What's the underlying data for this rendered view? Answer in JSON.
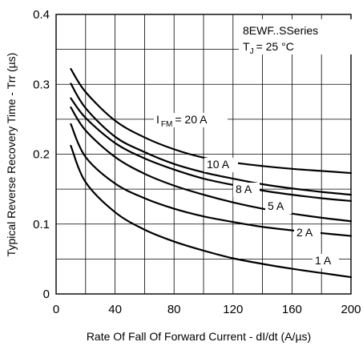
{
  "chart_data": {
    "type": "line",
    "xlabel": "Rate Of Fall Of Forward Current - dI/dt (A/µs)",
    "ylabel": "Typical Reverse Recovery Time - Trr (µs)",
    "xlim": [
      0,
      200
    ],
    "ylim": [
      0,
      0.4
    ],
    "x_ticks": [
      0,
      40,
      80,
      120,
      160,
      200
    ],
    "y_ticks": [
      0,
      0.1,
      0.2,
      0.3,
      0.4
    ],
    "x_tick_labels": [
      "0",
      "40",
      "80",
      "120",
      "160",
      "200"
    ],
    "y_tick_labels": [
      "0",
      "0.1",
      "0.2",
      "0.3",
      "0.4"
    ],
    "x_minor_step": 20,
    "y_minor_step": 0.05,
    "grid": true,
    "series_name": "8EWF..SSeries",
    "junction_temp_prefix": "T",
    "junction_temp_sub": "J",
    "junction_temp_value": "= 25 °C",
    "series": [
      {
        "name": "I_FM = 20 A",
        "label_prefix": "I",
        "label_sub": "FM",
        "label_suffix": "= 20 A",
        "x": [
          10,
          20,
          40,
          60,
          80,
          100,
          120,
          140,
          160,
          180,
          200
        ],
        "y": [
          0.322,
          0.289,
          0.248,
          0.224,
          0.207,
          0.195,
          0.188,
          0.183,
          0.179,
          0.176,
          0.173
        ]
      },
      {
        "name": "10 A",
        "label_prefix": "10 A",
        "x": [
          10,
          20,
          40,
          60,
          80,
          100,
          120,
          140,
          160,
          180,
          200
        ],
        "y": [
          0.301,
          0.266,
          0.225,
          0.203,
          0.186,
          0.174,
          0.165,
          0.157,
          0.151,
          0.146,
          0.142
        ]
      },
      {
        "name": "8 A",
        "label_prefix": "8 A",
        "x": [
          10,
          20,
          40,
          60,
          80,
          100,
          120,
          140,
          160,
          180,
          200
        ],
        "y": [
          0.28,
          0.252,
          0.216,
          0.194,
          0.178,
          0.165,
          0.156,
          0.148,
          0.142,
          0.137,
          0.133
        ]
      },
      {
        "name": "5 A",
        "label_prefix": "5 A",
        "x": [
          10,
          20,
          40,
          60,
          80,
          100,
          120,
          140,
          160,
          180,
          200
        ],
        "y": [
          0.267,
          0.234,
          0.196,
          0.172,
          0.155,
          0.142,
          0.131,
          0.122,
          0.115,
          0.109,
          0.104
        ]
      },
      {
        "name": "2 A",
        "label_prefix": "2 A",
        "x": [
          10,
          20,
          40,
          60,
          80,
          100,
          120,
          140,
          160,
          180,
          200
        ],
        "y": [
          0.243,
          0.196,
          0.158,
          0.137,
          0.122,
          0.111,
          0.103,
          0.096,
          0.091,
          0.087,
          0.083
        ]
      },
      {
        "name": "1 A",
        "label_prefix": "1 A",
        "x": [
          10,
          20,
          40,
          60,
          80,
          100,
          120,
          140,
          160,
          180,
          200
        ],
        "y": [
          0.212,
          0.16,
          0.117,
          0.092,
          0.075,
          0.062,
          0.051,
          0.043,
          0.036,
          0.03,
          0.024
        ]
      }
    ]
  }
}
